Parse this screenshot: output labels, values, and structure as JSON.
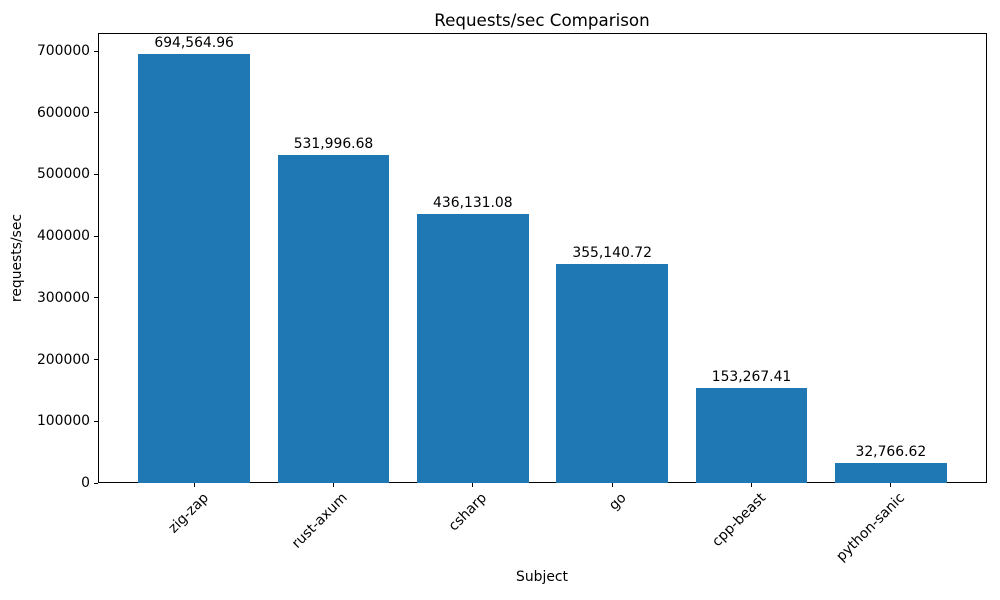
{
  "figure": {
    "background": "#ffffff",
    "text_color": "#000000",
    "spine_color": "#000000"
  },
  "chart_data": {
    "type": "bar",
    "title": "Requests/sec Comparison",
    "xlabel": "Subject",
    "ylabel": "requests/sec",
    "categories": [
      "zig-zap",
      "rust-axum",
      "csharp",
      "go",
      "cpp-beast",
      "python-sanic"
    ],
    "values": [
      694564.96,
      531996.68,
      436131.08,
      355140.72,
      153267.41,
      32766.62
    ],
    "bar_value_labels": [
      "694,564.96",
      "531,996.68",
      "436,131.08",
      "355,140.72",
      "153,267.41",
      "32,766.62"
    ],
    "y_ticks": [
      0,
      100000,
      200000,
      300000,
      400000,
      500000,
      600000,
      700000
    ],
    "y_tick_labels": [
      "0",
      "100000",
      "200000",
      "300000",
      "400000",
      "500000",
      "600000",
      "700000"
    ],
    "ylim": [
      0,
      729293
    ],
    "bar_color": "#1f77b4",
    "bar_width_fraction": 0.8,
    "x_margin_fraction": 0.05,
    "grid": false,
    "legend": null
  }
}
